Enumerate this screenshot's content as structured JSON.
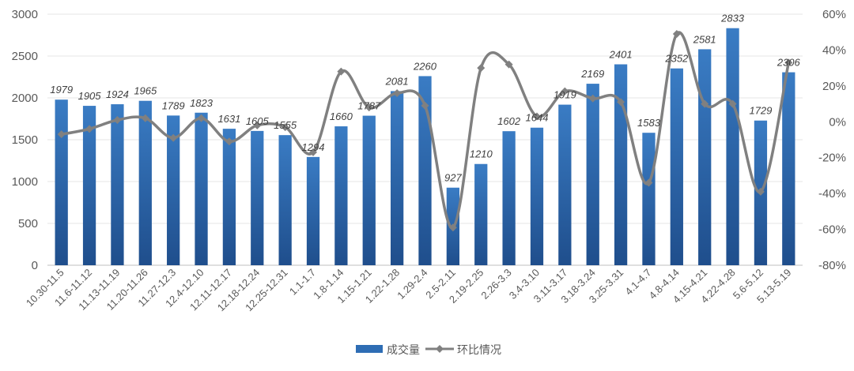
{
  "chart_data": {
    "type": "bar",
    "categories": [
      "10.30-11.5",
      "11.6-11.12",
      "11.13-11.19",
      "11.20-11.26",
      "11.27-12.3",
      "12.4-12.10",
      "12.11-12.17",
      "12.18-12.24",
      "12.25-12.31",
      "1.1-1.7",
      "1.8-1.14",
      "1.15-1.21",
      "1.22-1.28",
      "1.29-2.4",
      "2.5-2.11",
      "2.19-2.25",
      "2.26-3.3",
      "3.4-3.10",
      "3.11-3.17",
      "3.18-3.24",
      "3.25-3.31",
      "4.1-4.7",
      "4.8-4.14",
      "4.15-4.21",
      "4.22-4.28",
      "5.6-5.12",
      "5.13-5.19"
    ],
    "series": [
      {
        "name": "成交量",
        "type": "bar",
        "axis": "left",
        "color": "#2e6db4",
        "values": [
          1979,
          1905,
          1924,
          1965,
          1789,
          1823,
          1631,
          1605,
          1555,
          1294,
          1660,
          1787,
          2081,
          2260,
          927,
          1210,
          1602,
          1644,
          1919,
          2169,
          2401,
          1583,
          2352,
          2581,
          2833,
          1729,
          2306
        ],
        "labels": [
          "1979",
          "1905",
          "1924",
          "1965",
          "1789",
          "1823",
          "1631",
          "1605",
          "1555",
          "1294",
          "1660",
          "1787",
          "2081",
          "2260",
          "927",
          "1210",
          "1602",
          "1644",
          "1919",
          "2169",
          "2401",
          "1583",
          "2352",
          "2581",
          "2833",
          "1729",
          "2306"
        ]
      },
      {
        "name": "环比情况",
        "type": "line",
        "axis": "right",
        "color": "#808080",
        "values": [
          -7,
          -4,
          1,
          2,
          -9,
          2,
          -11,
          -2,
          -3,
          -17,
          28,
          8,
          16,
          9,
          -59,
          30,
          32,
          3,
          17,
          13,
          11,
          -34,
          49,
          10,
          10,
          -39,
          33
        ]
      }
    ],
    "y_left": {
      "ylim": [
        0,
        3000
      ],
      "ticks": [
        "0",
        "500",
        "1000",
        "1500",
        "2000",
        "2500",
        "3000"
      ]
    },
    "y_right": {
      "ylim": [
        -80,
        60
      ],
      "unit": "%",
      "ticks": [
        "-80%",
        "-60%",
        "-40%",
        "-20%",
        "0%",
        "20%",
        "40%",
        "60%"
      ]
    },
    "title": "",
    "xlabel": "",
    "ylabel": "",
    "grid": true,
    "legend_position": "bottom-center"
  }
}
